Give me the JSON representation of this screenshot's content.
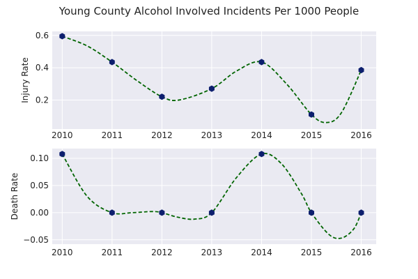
{
  "chart_data": [
    {
      "type": "line",
      "title": "Young County Alcohol Involved Incidents Per 1000 People",
      "ylabel": "Injury Rate",
      "x": [
        2010,
        2011,
        2012,
        2013,
        2014,
        2015,
        2016
      ],
      "x_ticks": [
        "2010",
        "2011",
        "2012",
        "2013",
        "2014",
        "2015",
        "2016"
      ],
      "y": [
        0.595,
        0.435,
        0.22,
        0.27,
        0.435,
        0.11,
        0.385
      ],
      "smooth_curve": {
        "x": [
          2010,
          2010.5,
          2011,
          2011.5,
          2012,
          2012.35,
          2013,
          2013.5,
          2014,
          2014.5,
          2015,
          2015.3,
          2015.6,
          2016
        ],
        "y": [
          0.595,
          0.535,
          0.435,
          0.32,
          0.22,
          0.2,
          0.27,
          0.38,
          0.435,
          0.3,
          0.11,
          0.06,
          0.12,
          0.385
        ]
      },
      "ylim": [
        0.02,
        0.625
      ],
      "xlim": [
        2009.8,
        2016.3
      ],
      "yticks": [
        0.2,
        0.4,
        0.6
      ],
      "ytick_labels": [
        "0.2",
        "0.4",
        "0.6"
      ],
      "grid": true,
      "colors": {
        "line": "#006400",
        "marker": "#0d1f6e",
        "background": "#eaeaf2",
        "grid": "#ffffff"
      }
    },
    {
      "type": "line",
      "ylabel": "Death Rate",
      "x": [
        2010,
        2011,
        2012,
        2013,
        2014,
        2015,
        2016
      ],
      "x_ticks": [
        "2010",
        "2011",
        "2012",
        "2013",
        "2014",
        "2015",
        "2016"
      ],
      "y": [
        0.108,
        0.0,
        0.0,
        0.0,
        0.108,
        0.0,
        0.0
      ],
      "smooth_curve": {
        "x": [
          2010,
          2010.5,
          2011,
          2011.4,
          2011.8,
          2012,
          2012.3,
          2012.65,
          2013,
          2013.5,
          2014,
          2014.4,
          2014.8,
          2015,
          2015.35,
          2015.6,
          2015.85,
          2016
        ],
        "y": [
          0.108,
          0.03,
          0.0,
          0.0,
          0.002,
          0.0,
          -0.008,
          -0.012,
          0.0,
          0.065,
          0.108,
          0.09,
          0.035,
          0.0,
          -0.04,
          -0.047,
          -0.03,
          0.0
        ]
      },
      "ylim": [
        -0.058,
        0.118
      ],
      "xlim": [
        2009.8,
        2016.3
      ],
      "yticks": [
        -0.05,
        0.0,
        0.05,
        0.1
      ],
      "ytick_labels": [
        "−0.05",
        "0.00",
        "0.05",
        "0.10"
      ],
      "grid": true,
      "colors": {
        "line": "#006400",
        "marker": "#0d1f6e",
        "background": "#eaeaf2",
        "grid": "#ffffff"
      }
    }
  ]
}
